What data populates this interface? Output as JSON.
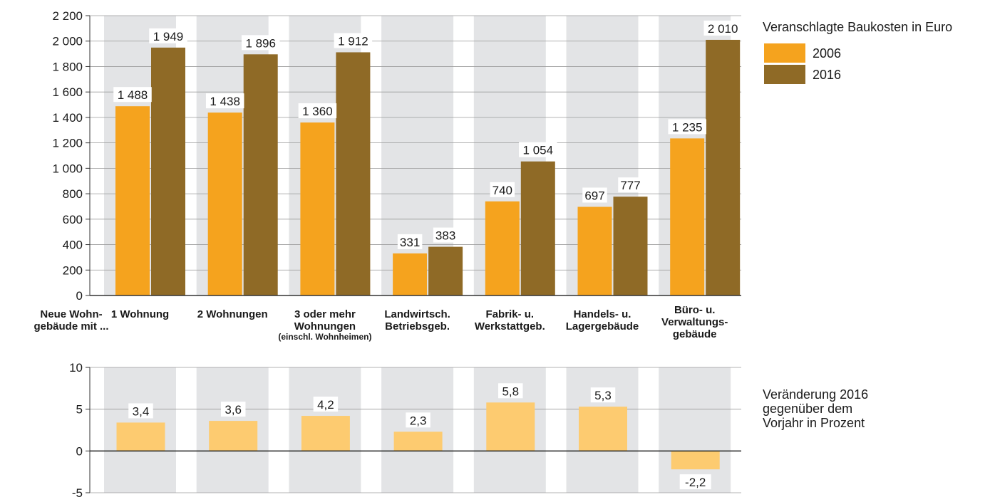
{
  "chart_data": [
    {
      "type": "bar",
      "legend_title": "Veranschlagte Baukosten in Euro",
      "row_label": [
        "Neue Wohn-",
        "gebäude mit ..."
      ],
      "categories": [
        [
          "1 Wohnung"
        ],
        [
          "2 Wohnungen"
        ],
        [
          "3 oder mehr",
          "Wohnungen"
        ],
        [
          "Landwirtsch.",
          "Betriebsgeb."
        ],
        [
          "Fabrik- u.",
          "Werkstattgeb."
        ],
        [
          "Handels- u.",
          "Lagergebäude"
        ],
        [
          "Büro- u.",
          "Verwaltungs-",
          "gebäude"
        ]
      ],
      "category_notes": [
        "",
        "",
        "(einschl. Wohnheimen)",
        "",
        "",
        "",
        ""
      ],
      "series": [
        {
          "name": "2006",
          "color": "#f5a31e",
          "values": [
            1488,
            1438,
            1360,
            331,
            740,
            697,
            1235
          ],
          "labels": [
            "1 488",
            "1 438",
            "1 360",
            "331",
            "740",
            "697",
            "1 235"
          ]
        },
        {
          "name": "2016",
          "color": "#8f6a26",
          "values": [
            1949,
            1896,
            1912,
            383,
            1054,
            777,
            2010
          ],
          "labels": [
            "1 949",
            "1 896",
            "1 912",
            "383",
            "1 054",
            "777",
            "2 010"
          ]
        }
      ],
      "ylim": [
        0,
        2200
      ],
      "yticks": [
        0,
        200,
        400,
        600,
        800,
        1000,
        1200,
        1400,
        1600,
        1800,
        2000,
        2200
      ],
      "ytick_labels": [
        "0",
        "200",
        "400",
        "600",
        "800",
        "1 000",
        "1 200",
        "1 400",
        "1 600",
        "1 800",
        "2 000",
        "2 200"
      ],
      "grid": true,
      "legend_position": "top-right"
    },
    {
      "type": "bar",
      "title_lines": [
        "Veränderung 2016",
        "gegenüber dem",
        "Vorjahr in Prozent"
      ],
      "series": [
        {
          "color": "#fdcb70",
          "values": [
            3.4,
            3.6,
            4.2,
            2.3,
            5.8,
            5.3,
            -2.2
          ],
          "labels": [
            "3,4",
            "3,6",
            "4,2",
            "2,3",
            "5,8",
            "5,3",
            "-2,2"
          ]
        }
      ],
      "ylim": [
        -5,
        10
      ],
      "yticks": [
        -5,
        0,
        5,
        10
      ],
      "ytick_labels": [
        "-5",
        "0",
        "5",
        "10"
      ],
      "grid": true
    }
  ]
}
